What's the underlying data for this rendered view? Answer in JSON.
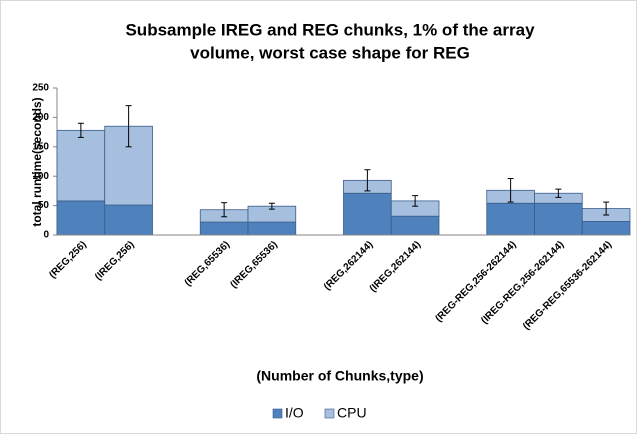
{
  "chart_data": {
    "type": "bar",
    "stacked": true,
    "title": [
      "Subsample IREG and REG chunks, 1% of the array",
      "volume, worst case shape for REG"
    ],
    "x_label": "(Number of Chunks,type)",
    "y_label": "total runtime(seconds)",
    "categories": [
      "(REG,256)",
      "(IREG,256)",
      null,
      "(REG,65536)",
      "(IREG,65536)",
      null,
      "(REG,262144)",
      "(IREG,262144)",
      null,
      "(REG-REG,256-262144)",
      "(IREG-REG,256-262144)",
      "(REG-REG,65536-262144)"
    ],
    "series": [
      {
        "name": "I/O",
        "color": "#4f81bd",
        "values": [
          58,
          51,
          null,
          22,
          22,
          null,
          71,
          32,
          null,
          54,
          54,
          23
        ]
      },
      {
        "name": "CPU",
        "color": "#a7bfde",
        "values": [
          120,
          134,
          null,
          21,
          27,
          null,
          22,
          26,
          null,
          22,
          17,
          22
        ]
      }
    ],
    "errors": [
      12,
      35,
      null,
      12,
      5,
      null,
      18,
      9,
      null,
      20,
      7,
      11
    ],
    "ylim": [
      0,
      250
    ],
    "yticks": [
      0,
      50,
      100,
      150,
      200,
      250
    ],
    "grid": false,
    "legend": "bottom"
  }
}
